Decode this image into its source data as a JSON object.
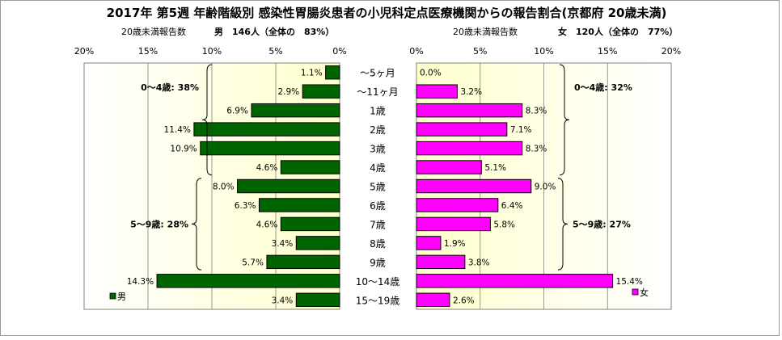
{
  "title": "2017年 第5週 年齢階級別 感染性胃腸炎患者の小児科定点医療機関からの報告割合(京都府 20歳未満)",
  "chart_data": [
    {
      "type": "bar",
      "orientation": "horizontal",
      "direction": "right-to-left",
      "subtitle_left": "20歳未満報告数",
      "subtitle_right": "男　146人（全体の　83%）",
      "xlim": [
        0,
        20
      ],
      "ticks": [
        "0%",
        "5%",
        "10%",
        "15%",
        "20%"
      ],
      "tick_values": [
        0,
        5,
        10,
        15,
        20
      ],
      "categories": [
        "〜5ヶ月",
        "〜11ヶ月",
        "1歳",
        "2歳",
        "3歳",
        "4歳",
        "5歳",
        "6歳",
        "7歳",
        "8歳",
        "9歳",
        "10〜14歳",
        "15〜19歳"
      ],
      "series": [
        {
          "name": "男",
          "color": "#006400",
          "values": [
            1.1,
            2.9,
            6.9,
            11.4,
            10.9,
            4.6,
            8.0,
            6.3,
            4.6,
            3.4,
            5.7,
            14.3,
            3.4
          ],
          "labels": [
            "1.1%",
            "2.9%",
            "6.9%",
            "11.4%",
            "10.9%",
            "4.6%",
            "8.0%",
            "6.3%",
            "4.6%",
            "3.4%",
            "5.7%",
            "14.3%",
            "3.4%"
          ]
        }
      ],
      "groups": [
        {
          "label": "0〜4歳: 38%",
          "from": 0,
          "to": 5
        },
        {
          "label": "5〜9歳: 28%",
          "from": 6,
          "to": 10
        }
      ],
      "legend": "bottom-left"
    },
    {
      "type": "bar",
      "orientation": "horizontal",
      "direction": "left-to-right",
      "subtitle_left": "20歳未満報告数",
      "subtitle_right": "女　120人（全体の　77%）",
      "xlim": [
        0,
        20
      ],
      "ticks": [
        "0%",
        "5%",
        "10%",
        "15%",
        "20%"
      ],
      "tick_values": [
        0,
        5,
        10,
        15,
        20
      ],
      "categories": [
        "〜5ヶ月",
        "〜11ヶ月",
        "1歳",
        "2歳",
        "3歳",
        "4歳",
        "5歳",
        "6歳",
        "7歳",
        "8歳",
        "9歳",
        "10〜14歳",
        "15〜19歳"
      ],
      "series": [
        {
          "name": "女",
          "color": "#ff00ff",
          "values": [
            0.0,
            3.2,
            8.3,
            7.1,
            8.3,
            5.1,
            9.0,
            6.4,
            5.8,
            1.9,
            3.8,
            15.4,
            2.6
          ],
          "labels": [
            "0.0%",
            "3.2%",
            "8.3%",
            "7.1%",
            "8.3%",
            "5.1%",
            "9.0%",
            "6.4%",
            "5.8%",
            "1.9%",
            "3.8%",
            "15.4%",
            "2.6%"
          ]
        }
      ],
      "groups": [
        {
          "label": "0〜4歳: 32%",
          "from": 0,
          "to": 5
        },
        {
          "label": "5〜9歳: 27%",
          "from": 6,
          "to": 10
        }
      ],
      "legend": "bottom-right"
    }
  ]
}
